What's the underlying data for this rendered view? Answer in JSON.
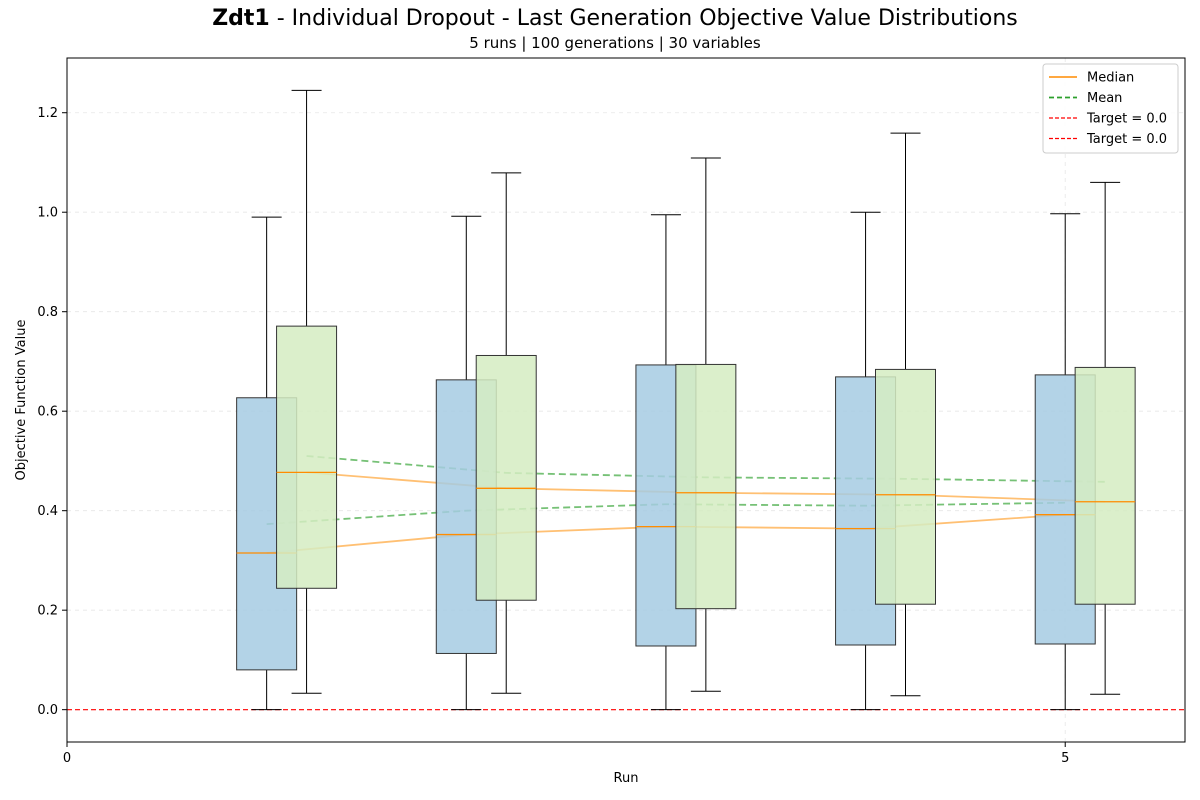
{
  "chart_data": {
    "type": "box",
    "title_bold": "Zdt1",
    "title_rest": " - Individual Dropout - Last Generation Objective Value Distributions",
    "subtitle": "5 runs | 100 generations | 30 variables",
    "xlabel": "Run",
    "ylabel": "Objective Function Value",
    "xlim": [
      0,
      5.6
    ],
    "ylim": [
      -0.065,
      1.31
    ],
    "xticks": [
      0,
      5
    ],
    "yticks": [
      0.0,
      0.2,
      0.4,
      0.6,
      0.8,
      1.0,
      1.2
    ],
    "grid": true,
    "legend_position": "top-right",
    "target_value": 0.0,
    "colors": {
      "box_a": "#a6cbe3",
      "box_b": "#d5ecc2",
      "median": "#ff8c00",
      "mean": "#2ca02c",
      "target": "#ff0000",
      "edge": "#333333"
    },
    "legend": [
      {
        "label": "Median",
        "style": "median"
      },
      {
        "label": "Mean",
        "style": "mean"
      },
      {
        "label": "Target = 0.0",
        "style": "target"
      },
      {
        "label": "Target = 0.0",
        "style": "target"
      }
    ],
    "series": [
      {
        "boxes": [
          {
            "position": 1.0,
            "whisker_low": 0.0,
            "q1": 0.08,
            "median": 0.315,
            "q3": 0.627,
            "whisker_high": 0.99,
            "mean": 0.373
          },
          {
            "position": 2.0,
            "whisker_low": 0.0,
            "q1": 0.113,
            "median": 0.352,
            "q3": 0.663,
            "whisker_high": 0.992,
            "mean": 0.4
          },
          {
            "position": 3.0,
            "whisker_low": 0.0,
            "q1": 0.128,
            "median": 0.368,
            "q3": 0.693,
            "whisker_high": 0.995,
            "mean": 0.413
          },
          {
            "position": 4.0,
            "whisker_low": 0.0,
            "q1": 0.13,
            "median": 0.364,
            "q3": 0.669,
            "whisker_high": 1.0,
            "mean": 0.41
          },
          {
            "position": 5.0,
            "whisker_low": 0.0,
            "q1": 0.132,
            "median": 0.392,
            "q3": 0.673,
            "whisker_high": 0.997,
            "mean": 0.416
          }
        ]
      },
      {
        "boxes": [
          {
            "position": 1.2,
            "whisker_low": 0.033,
            "q1": 0.244,
            "median": 0.477,
            "q3": 0.771,
            "whisker_high": 1.245,
            "mean": 0.51
          },
          {
            "position": 2.2,
            "whisker_low": 0.033,
            "q1": 0.22,
            "median": 0.445,
            "q3": 0.712,
            "whisker_high": 1.079,
            "mean": 0.476
          },
          {
            "position": 3.2,
            "whisker_low": 0.037,
            "q1": 0.203,
            "median": 0.436,
            "q3": 0.694,
            "whisker_high": 1.109,
            "mean": 0.467
          },
          {
            "position": 4.2,
            "whisker_low": 0.028,
            "q1": 0.212,
            "median": 0.432,
            "q3": 0.684,
            "whisker_high": 1.159,
            "mean": 0.464
          },
          {
            "position": 5.2,
            "whisker_low": 0.031,
            "q1": 0.212,
            "median": 0.418,
            "q3": 0.688,
            "whisker_high": 1.06,
            "mean": 0.458
          }
        ]
      }
    ]
  }
}
